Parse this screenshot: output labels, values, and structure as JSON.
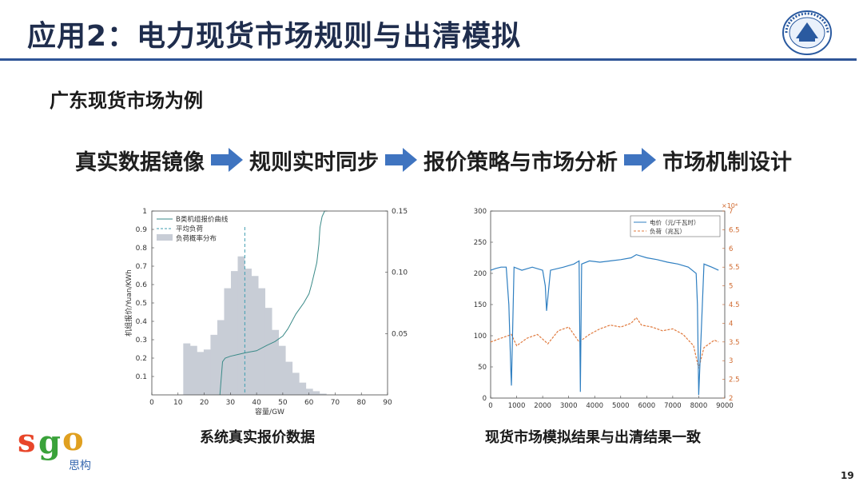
{
  "slide": {
    "title": "应用2：电力现货市场规则与出清模拟",
    "subtitle": "广东现货市场为例",
    "flow": [
      "真实数据镜像",
      "规则实时同步",
      "报价策略与市场分析",
      "市场机制设计"
    ],
    "page_number": "19",
    "captions": [
      "系统真实报价数据",
      "现货市场模拟结果与出清结果一致"
    ],
    "brand": {
      "letters": [
        "s",
        "g",
        "o"
      ],
      "name": "思构"
    },
    "colors": {
      "title": "#1f2d4d",
      "rule": "#2f5597",
      "arrow": "#3f74c0"
    }
  },
  "chart_data": [
    {
      "type": "bar+line",
      "xlabel": "容量/GW",
      "ylabel": "机组报价/Yuan/KWh",
      "xlim": [
        0,
        90
      ],
      "ylim": [
        0,
        1
      ],
      "y2lim": [
        0,
        0.15
      ],
      "xticks": [
        "0",
        "10",
        "20",
        "30",
        "40",
        "50",
        "60",
        "70",
        "80",
        "90"
      ],
      "yticks": [
        "0.1",
        "0.2",
        "0.3",
        "0.4",
        "0.5",
        "0.6",
        "0.7",
        "0.8",
        "0.9",
        "1"
      ],
      "y2ticks": [
        "0.05",
        "0.10",
        "0.15"
      ],
      "legend": [
        "B类机组报价曲线",
        "平均负荷",
        "负荷概率分布"
      ],
      "legend_position": "top-left",
      "histogram": {
        "bin_start": 12,
        "bin_width": 2.6,
        "values": [
          0.042,
          0.04,
          0.035,
          0.037,
          0.049,
          0.061,
          0.087,
          0.101,
          0.113,
          0.103,
          0.097,
          0.087,
          0.071,
          0.053,
          0.04,
          0.027,
          0.018,
          0.01,
          0.005,
          0.003,
          0.001
        ]
      },
      "bid_curve": {
        "x": [
          26,
          27,
          28,
          30,
          33,
          36,
          40,
          44,
          47,
          50,
          52,
          55,
          58,
          60,
          61,
          62,
          63,
          63.8,
          64.2,
          65,
          66,
          67
        ],
        "y": [
          0,
          0.18,
          0.2,
          0.21,
          0.22,
          0.23,
          0.24,
          0.27,
          0.29,
          0.32,
          0.36,
          0.44,
          0.5,
          0.55,
          0.6,
          0.66,
          0.72,
          0.82,
          0.91,
          0.97,
          1.0,
          1.0
        ]
      },
      "average_load": 35.5,
      "colors": {
        "hist": "#c8cdd6",
        "curve": "#3a8a88",
        "avg": "#3f9db0"
      }
    },
    {
      "type": "line",
      "xlim": [
        0,
        9000
      ],
      "ylim": [
        0,
        300
      ],
      "y2lim": [
        2,
        7
      ],
      "y2_multiplier": "×10⁴",
      "xticks": [
        "0",
        "1000",
        "2000",
        "3000",
        "4000",
        "5000",
        "6000",
        "7000",
        "8000",
        "9000"
      ],
      "yticks": [
        "0",
        "50",
        "100",
        "150",
        "200",
        "250",
        "300"
      ],
      "y2ticks": [
        "2",
        "2.5",
        "3",
        "3.5",
        "4",
        "4.5",
        "5",
        "5.5",
        "6",
        "6.5",
        "7"
      ],
      "legend_position": "top-right",
      "series": [
        {
          "name": "电价（元/千瓦时）",
          "axis": "left",
          "x": [
            0,
            200,
            400,
            600,
            700,
            780,
            800,
            900,
            1200,
            1600,
            2000,
            2100,
            2150,
            2300,
            2800,
            3200,
            3400,
            3450,
            3500,
            3800,
            4200,
            4600,
            5000,
            5400,
            5600,
            6000,
            6400,
            6800,
            7200,
            7600,
            7900,
            7950,
            8000,
            8200,
            8500,
            8760
          ],
          "y": [
            205,
            208,
            210,
            210,
            150,
            40,
            20,
            210,
            205,
            210,
            205,
            180,
            140,
            205,
            210,
            215,
            220,
            10,
            215,
            220,
            218,
            220,
            222,
            225,
            230,
            225,
            222,
            218,
            215,
            210,
            200,
            150,
            5,
            215,
            210,
            205
          ],
          "color": "#2f7fc1"
        },
        {
          "name": "负荷（兆瓦）",
          "axis": "right",
          "x": [
            0,
            400,
            800,
            1000,
            1400,
            1800,
            2200,
            2600,
            3000,
            3400,
            3800,
            4200,
            4600,
            5000,
            5400,
            5600,
            5800,
            6200,
            6600,
            7000,
            7400,
            7800,
            8000,
            8200,
            8600,
            8760
          ],
          "y": [
            3.5,
            3.6,
            3.7,
            3.4,
            3.6,
            3.7,
            3.45,
            3.8,
            3.9,
            3.5,
            3.7,
            3.85,
            3.95,
            3.9,
            4.0,
            4.15,
            3.95,
            3.9,
            3.8,
            3.85,
            3.7,
            3.4,
            2.8,
            3.35,
            3.55,
            3.5
          ],
          "color": "#e07a3e"
        }
      ]
    }
  ]
}
